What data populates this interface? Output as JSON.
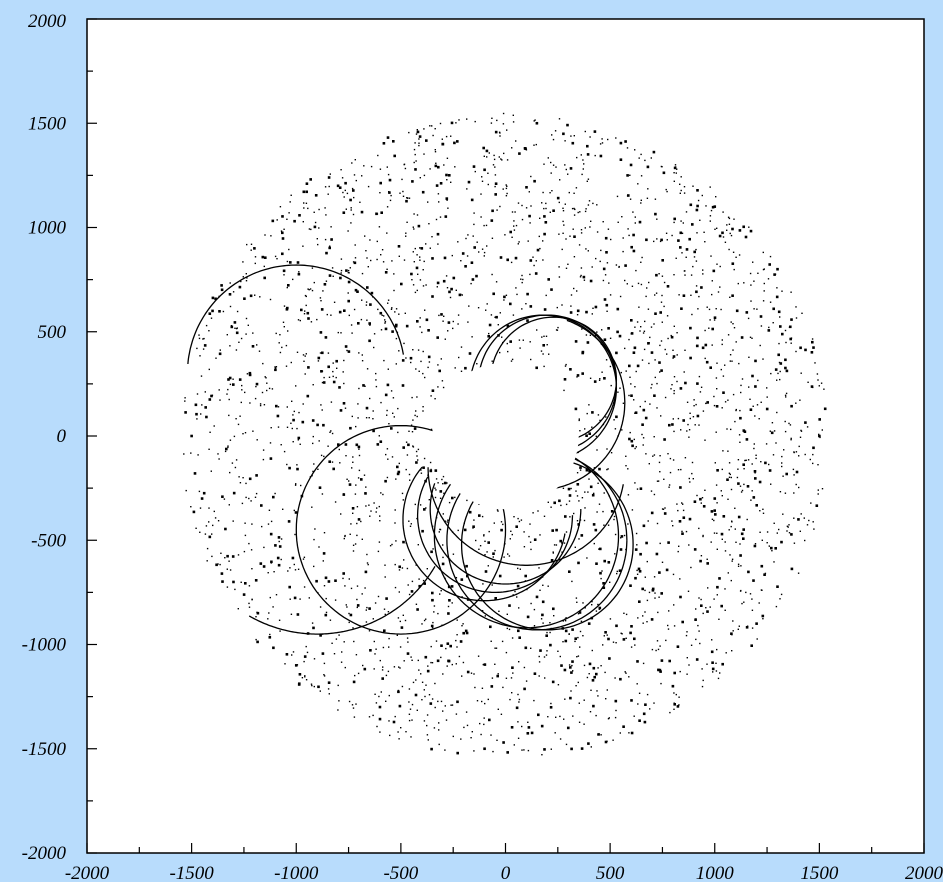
{
  "chart_data": {
    "type": "scatter",
    "title": "",
    "xlabel": "",
    "ylabel": "",
    "xlim": [
      -2000,
      2000
    ],
    "ylim": [
      -2000,
      2000
    ],
    "x_ticks": [
      -2000,
      -1500,
      -1000,
      -500,
      0,
      500,
      1000,
      1500,
      2000
    ],
    "y_ticks": [
      -2000,
      -1500,
      -1000,
      -500,
      0,
      500,
      1000,
      1500,
      2000
    ],
    "x_tick_labels": [
      "-2000",
      "-1500",
      "-1000",
      "-500",
      "0",
      "500",
      "1000",
      "1500",
      "2000"
    ],
    "y_tick_labels": [
      "-2000",
      "-1500",
      "-1000",
      "-500",
      "0",
      "500",
      "1000",
      "1500",
      "2000"
    ],
    "grid": false,
    "legend": "none",
    "colors": {
      "background": "#b8dcfc",
      "plot_area": "#ffffff",
      "marks": "#000000"
    },
    "scatter_field": {
      "inner_radius": 350,
      "outer_radius": 1550,
      "approx_point_count": 3000
    },
    "sample_points": [
      {
        "x": -1400,
        "y": 600
      },
      {
        "x": -1200,
        "y": 900
      },
      {
        "x": -800,
        "y": 1200
      },
      {
        "x": -300,
        "y": 1400
      },
      {
        "x": 150,
        "y": 1500
      },
      {
        "x": 600,
        "y": 1300
      },
      {
        "x": 1000,
        "y": 1100
      },
      {
        "x": 1300,
        "y": 800
      },
      {
        "x": 1500,
        "y": 0
      },
      {
        "x": 1400,
        "y": -400
      },
      {
        "x": 1200,
        "y": -900
      },
      {
        "x": 800,
        "y": -1200
      },
      {
        "x": 300,
        "y": -1400
      },
      {
        "x": -100,
        "y": -1500
      },
      {
        "x": -600,
        "y": -1300
      },
      {
        "x": -1000,
        "y": -1100
      },
      {
        "x": -1300,
        "y": -700
      },
      {
        "x": -1500,
        "y": 0
      },
      {
        "x": -1450,
        "y": -300
      },
      {
        "x": 700,
        "y": 400
      },
      {
        "x": -700,
        "y": -400
      },
      {
        "x": 400,
        "y": -900
      },
      {
        "x": -400,
        "y": 900
      },
      {
        "x": 1000,
        "y": -300
      }
    ],
    "orbits": [
      {
        "cx": -1000,
        "cy": 300,
        "r": 520,
        "start_deg": 10,
        "end_deg": 175
      },
      {
        "cx": -900,
        "cy": -300,
        "r": 650,
        "start_deg": 240,
        "end_deg": 330
      },
      {
        "cx": -500,
        "cy": -450,
        "r": 500,
        "start_deg": 0,
        "end_deg": 360
      },
      {
        "cx": 150,
        "cy": -500,
        "r": 430,
        "start_deg": 0,
        "end_deg": 360
      },
      {
        "cx": 100,
        "cy": -480,
        "r": 440,
        "start_deg": 0,
        "end_deg": 360
      },
      {
        "cx": 200,
        "cy": -520,
        "r": 410,
        "start_deg": 0,
        "end_deg": 360
      },
      {
        "cx": -50,
        "cy": -380,
        "r": 370,
        "start_deg": 150,
        "end_deg": 360
      },
      {
        "cx": 0,
        "cy": -350,
        "r": 360,
        "start_deg": 160,
        "end_deg": 360
      },
      {
        "cx": -100,
        "cy": -400,
        "r": 390,
        "start_deg": 140,
        "end_deg": 350
      },
      {
        "cx": 200,
        "cy": 250,
        "r": 330,
        "start_deg": 0,
        "end_deg": 360
      },
      {
        "cx": 230,
        "cy": 270,
        "r": 300,
        "start_deg": 0,
        "end_deg": 360
      },
      {
        "cx": 180,
        "cy": 230,
        "r": 350,
        "start_deg": 0,
        "end_deg": 360
      },
      {
        "cx": 150,
        "cy": 160,
        "r": 420,
        "start_deg": 270,
        "end_deg": 430
      },
      {
        "cx": 100,
        "cy": -150,
        "r": 470,
        "start_deg": 180,
        "end_deg": 350
      }
    ],
    "central_disk_radius": 350
  }
}
